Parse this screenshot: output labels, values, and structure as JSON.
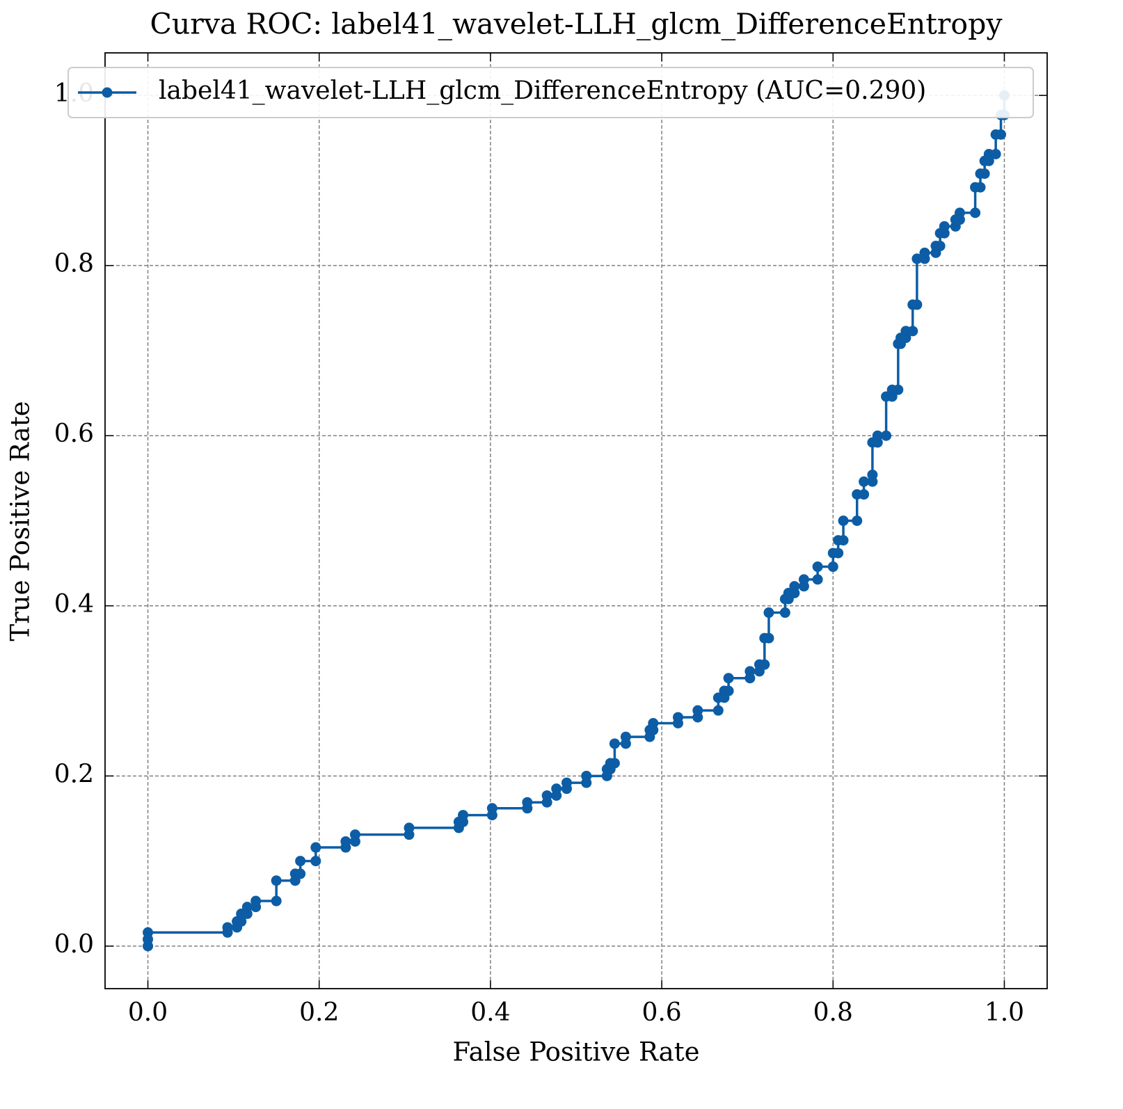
{
  "chart_data": {
    "type": "line",
    "title": "Curva ROC: label41_wavelet-LLH_glcm_DifferenceEntropy",
    "x_label": "False Positive Rate",
    "y_label": "True Positive Rate",
    "x": [
      0,
      0,
      0,
      0.093,
      0.093,
      0.104,
      0.104,
      0.109,
      0.109,
      0.116,
      0.116,
      0.126,
      0.126,
      0.15,
      0.15,
      0.172,
      0.172,
      0.178,
      0.178,
      0.196,
      0.196,
      0.231,
      0.231,
      0.242,
      0.242,
      0.305,
      0.305,
      0.363,
      0.363,
      0.368,
      0.368,
      0.402,
      0.402,
      0.443,
      0.443,
      0.466,
      0.466,
      0.477,
      0.477,
      0.489,
      0.489,
      0.512,
      0.512,
      0.536,
      0.536,
      0.54,
      0.54,
      0.545,
      0.545,
      0.558,
      0.558,
      0.586,
      0.586,
      0.59,
      0.59,
      0.619,
      0.619,
      0.642,
      0.642,
      0.666,
      0.666,
      0.673,
      0.673,
      0.678,
      0.678,
      0.703,
      0.703,
      0.714,
      0.714,
      0.72,
      0.72,
      0.725,
      0.725,
      0.744,
      0.744,
      0.748,
      0.748,
      0.755,
      0.755,
      0.766,
      0.766,
      0.782,
      0.782,
      0.8,
      0.8,
      0.806,
      0.806,
      0.812,
      0.812,
      0.828,
      0.828,
      0.836,
      0.836,
      0.846,
      0.846,
      0.846,
      0.852,
      0.852,
      0.862,
      0.862,
      0.869,
      0.869,
      0.876,
      0.876,
      0.879,
      0.879,
      0.885,
      0.885,
      0.893,
      0.893,
      0.898,
      0.898,
      0.907,
      0.907,
      0.92,
      0.92,
      0.925,
      0.925,
      0.93,
      0.93,
      0.943,
      0.943,
      0.948,
      0.948,
      0.966,
      0.966,
      0.972,
      0.972,
      0.977,
      0.977,
      0.982,
      0.982,
      0.99,
      0.99,
      0.996,
      0.996,
      1.0,
      1.0
    ],
    "series": [
      {
        "name": "label41_wavelet-LLH_glcm_DifferenceEntropy (AUC=0.290)",
        "color": "#0c5da5",
        "values": [
          0,
          0.008,
          0.016,
          0.016,
          0.022,
          0.022,
          0.029,
          0.029,
          0.038,
          0.038,
          0.046,
          0.046,
          0.053,
          0.053,
          0.077,
          0.077,
          0.085,
          0.085,
          0.1,
          0.1,
          0.116,
          0.116,
          0.123,
          0.123,
          0.131,
          0.131,
          0.139,
          0.139,
          0.146,
          0.146,
          0.154,
          0.154,
          0.162,
          0.162,
          0.169,
          0.169,
          0.177,
          0.177,
          0.185,
          0.185,
          0.192,
          0.192,
          0.2,
          0.2,
          0.208,
          0.208,
          0.215,
          0.215,
          0.238,
          0.238,
          0.246,
          0.246,
          0.254,
          0.254,
          0.262,
          0.262,
          0.269,
          0.269,
          0.277,
          0.277,
          0.292,
          0.292,
          0.3,
          0.3,
          0.315,
          0.315,
          0.323,
          0.323,
          0.331,
          0.331,
          0.362,
          0.362,
          0.392,
          0.392,
          0.408,
          0.408,
          0.415,
          0.415,
          0.423,
          0.423,
          0.431,
          0.431,
          0.446,
          0.446,
          0.462,
          0.462,
          0.477,
          0.477,
          0.5,
          0.5,
          0.531,
          0.531,
          0.546,
          0.546,
          0.554,
          0.592,
          0.592,
          0.6,
          0.6,
          0.646,
          0.646,
          0.654,
          0.654,
          0.708,
          0.708,
          0.715,
          0.715,
          0.723,
          0.723,
          0.754,
          0.754,
          0.808,
          0.808,
          0.815,
          0.815,
          0.823,
          0.823,
          0.838,
          0.838,
          0.846,
          0.846,
          0.854,
          0.854,
          0.862,
          0.862,
          0.892,
          0.892,
          0.908,
          0.908,
          0.923,
          0.923,
          0.931,
          0.931,
          0.954,
          0.954,
          0.977,
          0.977,
          1.0
        ]
      }
    ],
    "xlim": [
      -0.05,
      1.05
    ],
    "ylim": [
      -0.05,
      1.05
    ],
    "xticks": [
      {
        "value": 0,
        "label": "0.0"
      },
      0.2,
      0.4,
      0.6,
      0.8,
      {
        "value": 1,
        "label": "1.0"
      }
    ],
    "yticks": [
      {
        "value": 0,
        "label": "0.0"
      },
      0.2,
      0.4,
      0.6,
      0.8,
      {
        "value": 1,
        "label": "1.0"
      }
    ],
    "grid": true,
    "legend": "upper center"
  }
}
